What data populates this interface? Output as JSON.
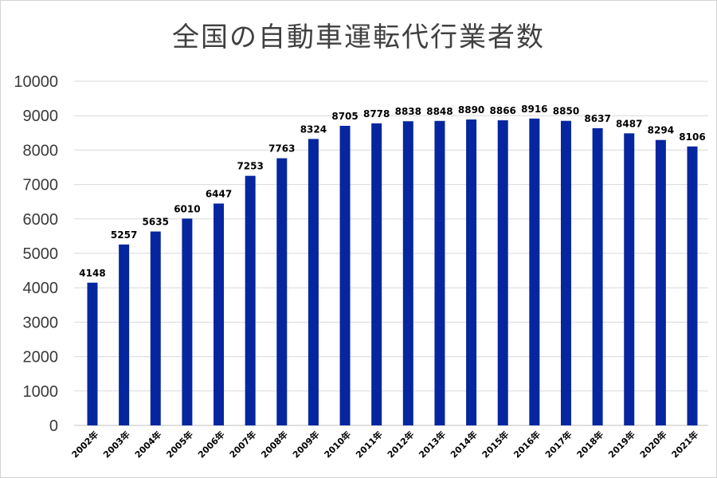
{
  "chart_data": {
    "type": "bar",
    "title": "全国の自動車運転代行業者数",
    "xlabel": "",
    "ylabel": "",
    "categories": [
      "2002年",
      "2003年",
      "2004年",
      "2005年",
      "2006年",
      "2007年",
      "2008年",
      "2009年",
      "2010年",
      "2011年",
      "2012年",
      "2013年",
      "2014年",
      "2015年",
      "2016年",
      "2017年",
      "2018年",
      "2019年",
      "2020年",
      "2021年"
    ],
    "values": [
      4148,
      5257,
      5635,
      6010,
      6447,
      7253,
      7763,
      8324,
      8705,
      8778,
      8838,
      8848,
      8890,
      8866,
      8916,
      8850,
      8637,
      8487,
      8294,
      8106
    ],
    "ylim": [
      0,
      10000
    ],
    "yticks": [
      "0",
      "1000",
      "2000",
      "3000",
      "4000",
      "5000",
      "6000",
      "7000",
      "8000",
      "9000",
      "10000"
    ],
    "grid": true,
    "legend": "none",
    "bar_color": "#0626a0",
    "data_labels": true
  }
}
